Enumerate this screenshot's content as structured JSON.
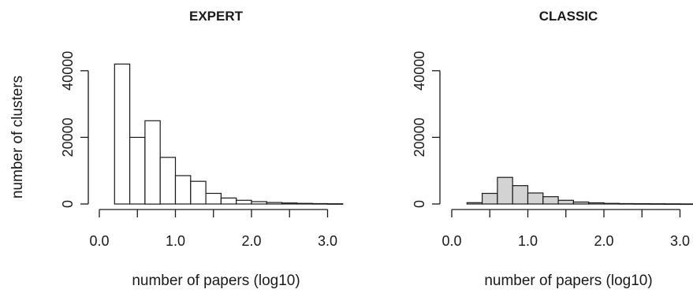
{
  "figure": {
    "ylabel": "number of clusters"
  },
  "chart_data": [
    {
      "type": "bar",
      "title": "EXPERT",
      "xlabel": "number of papers (log10)",
      "ylabel": "number of clusters",
      "bin_edges": [
        0.2,
        0.4,
        0.6,
        0.8,
        1.0,
        1.2,
        1.4,
        1.6,
        1.8,
        2.0,
        2.2,
        2.4,
        2.6,
        2.8,
        3.0,
        3.2
      ],
      "values": [
        42000,
        20000,
        25000,
        14000,
        8500,
        6800,
        3200,
        1800,
        1100,
        700,
        450,
        300,
        200,
        120,
        80
      ],
      "bar_color": "#ffffff",
      "xlim": [
        0.0,
        3.0
      ],
      "xticks": [
        0.0,
        0.5,
        1.0,
        1.5,
        2.0,
        2.5,
        3.0
      ],
      "xtick_labels": [
        "0.0",
        "",
        "1.0",
        "",
        "2.0",
        "",
        "3.0"
      ],
      "ylim": [
        0,
        40000
      ],
      "yticks": [
        0,
        20000,
        40000
      ],
      "ytick_labels": [
        "0",
        "20000",
        "40000"
      ]
    },
    {
      "type": "bar",
      "title": "CLASSIC",
      "xlabel": "number of papers (log10)",
      "ylabel": "",
      "bin_edges": [
        0.2,
        0.4,
        0.6,
        0.8,
        1.0,
        1.2,
        1.4,
        1.6,
        1.8,
        2.0,
        2.2,
        2.4,
        2.6,
        2.8,
        3.0,
        3.2
      ],
      "values": [
        400,
        3200,
        8000,
        5500,
        3300,
        2200,
        1100,
        600,
        350,
        200,
        130,
        90,
        60,
        40,
        25
      ],
      "bar_color": "#d3d3d3",
      "xlim": [
        0.0,
        3.0
      ],
      "xticks": [
        0.0,
        0.5,
        1.0,
        1.5,
        2.0,
        2.5,
        3.0
      ],
      "xtick_labels": [
        "0.0",
        "",
        "1.0",
        "",
        "2.0",
        "",
        "3.0"
      ],
      "ylim": [
        0,
        40000
      ],
      "yticks": [
        0,
        20000,
        40000
      ],
      "ytick_labels": [
        "0",
        "20000",
        "40000"
      ]
    }
  ]
}
